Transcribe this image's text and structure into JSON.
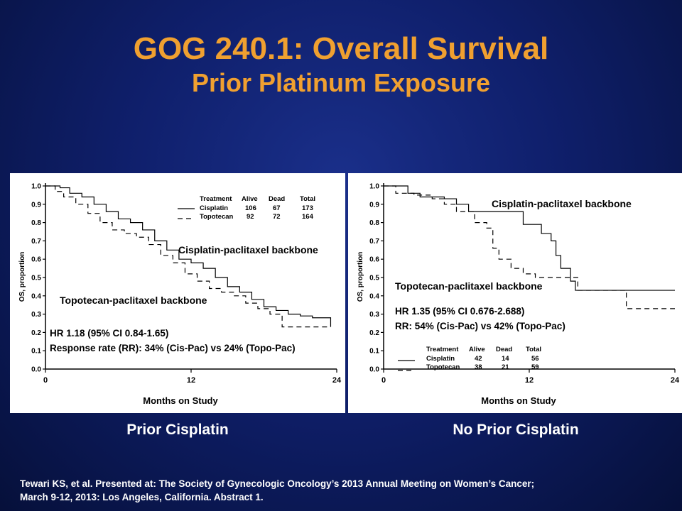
{
  "title": "GOG 240.1: Overall Survival",
  "subtitle": "Prior Platinum Exposure",
  "panels": [
    {
      "caption": "Prior Cisplatin",
      "ylabel": "OS, proportion",
      "xlabel": "Months on Study",
      "annot_cis": "Cisplatin-paclitaxel backbone",
      "annot_topo": "Topotecan-paclitaxel backbone",
      "hr": "HR 1.18 (95% CI 0.84-1.65)",
      "rr": "Response rate (RR): 34% (Cis-Pac) vs 24% (Topo-Pac)",
      "table": {
        "headers": [
          "Treatment",
          "Alive",
          "Dead",
          "Total"
        ],
        "rows": [
          [
            "Cisplatin",
            "106",
            "67",
            "173"
          ],
          [
            "Topotecan",
            "92",
            "72",
            "164"
          ]
        ]
      }
    },
    {
      "caption": "No Prior Cisplatin",
      "ylabel": "OS, proportion",
      "xlabel": "Months on Study",
      "annot_cis": "Cisplatin-paclitaxel backbone",
      "annot_topo": "Topotecan-paclitaxel backbone",
      "hr": "HR 1.35 (95% CI 0.676-2.688)",
      "rr": "RR: 54% (Cis-Pac) vs 42% (Topo-Pac)",
      "table": {
        "headers": [
          "Treatment",
          "Alive",
          "Dead",
          "Total"
        ],
        "rows": [
          [
            "Cisplatin",
            "42",
            "14",
            "56"
          ],
          [
            "Topotecan",
            "38",
            "21",
            "59"
          ]
        ]
      }
    }
  ],
  "footer_line1": "Tewari KS, et al. Presented at: The Society of Gynecologic Oncology’s 2013 Annual Meeting on Women’s Cancer;",
  "footer_line2": "March 9-12, 2013: Los Angeles, California. Abstract 1.",
  "colors": {
    "background": "#0f1f6b",
    "title": "#f0a030",
    "panel": "#ffffff",
    "curve": "#000000"
  },
  "chart_data": [
    {
      "type": "line",
      "title": "Prior Cisplatin",
      "xlabel": "Months on Study",
      "ylabel": "OS, proportion",
      "xlim": [
        0,
        24
      ],
      "ylim": [
        0,
        1.0
      ],
      "xticks": [
        0,
        12,
        24
      ],
      "yticks": [
        0.0,
        0.1,
        0.2,
        0.3,
        0.4,
        0.5,
        0.6,
        0.7,
        0.8,
        0.9,
        1.0
      ],
      "yticklabels": [
        "0.0",
        "0.1",
        "0.2",
        "0.3",
        "0.4",
        "0.5",
        "0.6",
        "0.7",
        "0.8",
        "0.9",
        "1.0"
      ],
      "step": true,
      "series": [
        {
          "name": "Cisplatin",
          "dash": "solid",
          "x": [
            0,
            1.2,
            2,
            3,
            4,
            5,
            6,
            7,
            8,
            9,
            10,
            11,
            12,
            13,
            14,
            15,
            16,
            17,
            18,
            19,
            20,
            21,
            22,
            23.5
          ],
          "y": [
            1.0,
            0.99,
            0.96,
            0.94,
            0.9,
            0.86,
            0.82,
            0.8,
            0.76,
            0.7,
            0.65,
            0.6,
            0.58,
            0.55,
            0.5,
            0.45,
            0.42,
            0.38,
            0.34,
            0.32,
            0.3,
            0.29,
            0.28,
            0.23
          ]
        },
        {
          "name": "Topotecan",
          "dash": "dashed",
          "x": [
            0,
            0.8,
            1.5,
            2.5,
            3.5,
            4.5,
            5.5,
            6.5,
            7.5,
            8.5,
            9.5,
            10.5,
            11.5,
            12.5,
            13.5,
            14.5,
            15.5,
            16.5,
            17.5,
            18.5,
            19.5,
            20.5,
            23.5
          ],
          "y": [
            1.0,
            0.97,
            0.94,
            0.9,
            0.85,
            0.8,
            0.76,
            0.74,
            0.72,
            0.68,
            0.62,
            0.58,
            0.52,
            0.48,
            0.44,
            0.42,
            0.4,
            0.36,
            0.33,
            0.3,
            0.23,
            0.23,
            0.23
          ]
        }
      ]
    },
    {
      "type": "line",
      "title": "No Prior Cisplatin",
      "xlabel": "Months on Study",
      "ylabel": "OS, proportion",
      "xlim": [
        0,
        24
      ],
      "ylim": [
        0,
        1.0
      ],
      "xticks": [
        0,
        12,
        24
      ],
      "yticks": [
        0.0,
        0.1,
        0.2,
        0.3,
        0.4,
        0.5,
        0.6,
        0.7,
        0.8,
        0.9,
        1.0
      ],
      "yticklabels": [
        "0.0",
        "0.1",
        "0.2",
        "0.3",
        "0.4",
        "0.5",
        "0.6",
        "0.7",
        "0.8",
        "0.9",
        "1.0"
      ],
      "step": true,
      "series": [
        {
          "name": "Cisplatin",
          "dash": "solid",
          "x": [
            0,
            2,
            3,
            5,
            6,
            7,
            11.5,
            13,
            13.8,
            14.2,
            14.6,
            15.4,
            15.8,
            16.2,
            17,
            24
          ],
          "y": [
            1.0,
            0.96,
            0.94,
            0.93,
            0.9,
            0.86,
            0.79,
            0.74,
            0.7,
            0.62,
            0.55,
            0.48,
            0.43,
            0.43,
            0.43,
            0.43
          ]
        },
        {
          "name": "Topotecan",
          "dash": "dashed",
          "x": [
            0,
            1,
            2.5,
            4,
            5,
            6,
            7.5,
            8.5,
            9,
            9.5,
            10.5,
            11.5,
            12.5,
            13,
            14.5,
            16,
            20,
            24
          ],
          "y": [
            1.0,
            0.96,
            0.95,
            0.93,
            0.9,
            0.86,
            0.8,
            0.77,
            0.66,
            0.6,
            0.55,
            0.52,
            0.5,
            0.5,
            0.5,
            0.43,
            0.33,
            0.33
          ]
        }
      ]
    }
  ]
}
